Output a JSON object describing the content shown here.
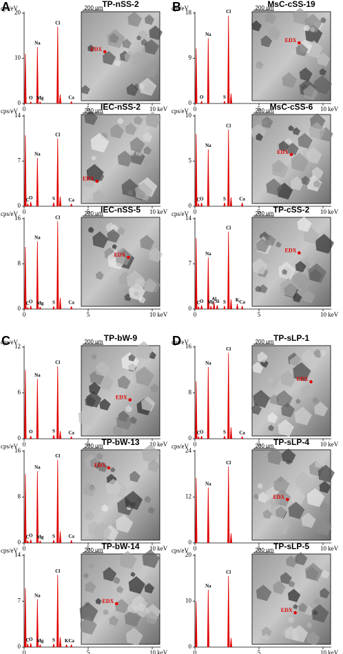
{
  "panel_labels": [
    "A",
    "B",
    "C",
    "D"
  ],
  "chart_data": [
    {
      "type": "spectrum",
      "title": "TP-nSS-2",
      "y_label": "cps/eV",
      "scale_bar": "200 µm",
      "marker_label": "EDX",
      "color": "#e00000",
      "xlim": [
        0,
        10
      ],
      "xticks": [
        0,
        5,
        {
          "value": 10,
          "label": "10 keV"
        }
      ],
      "ylim": [
        0,
        20
      ],
      "yticks": [
        0,
        10,
        20
      ],
      "x": [
        0.1,
        0.52,
        1.04,
        1.25,
        2.62,
        2.82,
        3.69
      ],
      "values": [
        11,
        0.4,
        12.5,
        0.4,
        17,
        2,
        0.5
      ],
      "peak_labels": [
        null,
        "O",
        "Na",
        "Mg",
        "Cl",
        null,
        "Ca"
      ]
    },
    {
      "type": "spectrum",
      "title": "IEC-nSS-2",
      "y_label": "cps/eV",
      "scale_bar": "200 µm",
      "marker_label": "EDX",
      "color": "#e00000",
      "xlim": [
        0,
        10
      ],
      "xticks": [
        0,
        5,
        {
          "value": 10,
          "label": "10 keV"
        }
      ],
      "ylim": [
        0,
        14
      ],
      "yticks": [
        0,
        7,
        14
      ],
      "x": [
        0.1,
        0.28,
        0.52,
        1.04,
        2.31,
        2.62,
        2.82,
        3.69
      ],
      "values": [
        11,
        0.4,
        0.7,
        7.5,
        0.6,
        10.5,
        1.5,
        0.4
      ],
      "peak_labels": [
        null,
        "C",
        "O",
        "Na",
        "S",
        "Cl",
        null,
        "Ca"
      ]
    },
    {
      "type": "spectrum",
      "title": "IEC-nSS-5",
      "y_label": "cps/eV",
      "scale_bar": "200 µm",
      "marker_label": "EDX",
      "color": "#e00000",
      "xlim": [
        0,
        10
      ],
      "xticks": [
        0,
        5,
        {
          "value": 10,
          "label": "10 keV"
        }
      ],
      "ylim": [
        0,
        16
      ],
      "yticks": [
        0,
        8,
        16
      ],
      "x": [
        0.1,
        0.28,
        0.52,
        1.04,
        1.25,
        2.31,
        2.62,
        2.82,
        3.69
      ],
      "values": [
        11,
        0.3,
        0.6,
        12,
        0.4,
        0.5,
        15.5,
        2,
        0.5
      ],
      "peak_labels": [
        null,
        "C",
        "O",
        "Na",
        "Mg",
        "S",
        "Cl",
        null,
        "Ca"
      ]
    },
    {
      "type": "spectrum",
      "title": "MsC-cSS-19",
      "y_label": "cps/eV",
      "scale_bar": "200 µm",
      "marker_label": "EDX",
      "color": "#e00000",
      "xlim": [
        0,
        10
      ],
      "xticks": [
        0,
        5,
        {
          "value": 10,
          "label": "10 keV"
        }
      ],
      "ylim": [
        0,
        18
      ],
      "yticks": [
        0,
        9,
        18
      ],
      "x": [
        0.1,
        0.52,
        1.04,
        2.31,
        2.62,
        2.82
      ],
      "values": [
        11,
        0.5,
        13,
        0.5,
        17.5,
        2
      ],
      "peak_labels": [
        null,
        "O",
        "Na",
        "S",
        "Cl",
        null
      ]
    },
    {
      "type": "spectrum",
      "title": "MsC-cSS-6",
      "y_label": "cps/eV",
      "scale_bar": "200 µm",
      "marker_label": "EDX",
      "color": "#e00000",
      "xlim": [
        0,
        10
      ],
      "xticks": [
        0,
        5,
        {
          "value": 10,
          "label": "10 keV"
        }
      ],
      "ylim": [
        0,
        10
      ],
      "yticks": [
        0,
        5,
        10
      ],
      "x": [
        0.1,
        0.28,
        0.52,
        1.04,
        2.31,
        2.62,
        2.82,
        3.69
      ],
      "values": [
        8,
        0.3,
        0.4,
        6.3,
        0.4,
        8.5,
        1,
        0.4
      ],
      "peak_labels": [
        null,
        "C",
        "O",
        "Na",
        "S",
        "Cl",
        null,
        "Ca"
      ]
    },
    {
      "type": "spectrum",
      "title": "TP-cSS-2",
      "y_label": "cps/eV",
      "scale_bar": "200 µm",
      "marker_label": "EDX",
      "color": "#e00000",
      "xlim": [
        0,
        10
      ],
      "xticks": [
        0,
        5,
        {
          "value": 10,
          "label": "10 keV"
        }
      ],
      "ylim": [
        0,
        14
      ],
      "yticks": [
        0,
        7,
        14
      ],
      "x": [
        0.1,
        0.28,
        0.52,
        1.04,
        1.25,
        1.49,
        1.74,
        2.31,
        2.62,
        2.82,
        3.31,
        3.69
      ],
      "values": [
        11,
        0.4,
        0.6,
        8,
        0.5,
        1,
        0.6,
        0.5,
        12,
        1.5,
        0.8,
        0.5
      ],
      "peak_labels": [
        null,
        "C",
        "O",
        "Na",
        "Mg",
        "Al",
        "Si",
        "S",
        "Cl",
        null,
        "K",
        "Ca"
      ]
    },
    {
      "type": "spectrum",
      "title": "TP-bW-9",
      "y_label": "cps/eV",
      "scale_bar": "200 µm",
      "marker_label": "EDX",
      "color": "#e00000",
      "xlim": [
        0,
        10
      ],
      "xticks": [
        0,
        5,
        {
          "value": 10,
          "label": "10 keV"
        }
      ],
      "ylim": [
        0,
        12
      ],
      "yticks": [
        0,
        6,
        12
      ],
      "x": [
        0.1,
        0.52,
        1.04,
        2.31,
        2.62,
        2.82,
        3.69
      ],
      "values": [
        9,
        0.4,
        7.8,
        0.5,
        9.5,
        1,
        0.3
      ],
      "peak_labels": [
        null,
        "O",
        "Na",
        "S",
        "Cl",
        null,
        "Ca"
      ]
    },
    {
      "type": "spectrum",
      "title": "TP-bW-13",
      "y_label": "cps/eV",
      "scale_bar": "200 µm",
      "marker_label": "EDX",
      "color": "#e00000",
      "xlim": [
        0,
        10
      ],
      "xticks": [
        0,
        5,
        {
          "value": 10,
          "label": "10 keV"
        }
      ],
      "ylim": [
        0,
        16
      ],
      "yticks": [
        0,
        8,
        16
      ],
      "x": [
        0.1,
        0.28,
        0.52,
        1.04,
        1.25,
        2.31,
        2.62,
        2.82,
        3.69
      ],
      "values": [
        12,
        0.4,
        0.6,
        12.5,
        0.4,
        0.5,
        14.5,
        2,
        0.5
      ],
      "peak_labels": [
        null,
        "C",
        "O",
        "Na",
        "Mg",
        "S",
        "Cl",
        null,
        "Ca"
      ]
    },
    {
      "type": "spectrum",
      "title": "TP-bW-14",
      "y_label": "cps/eV",
      "scale_bar": "200 µm",
      "marker_label": "EDX",
      "color": "#e00000",
      "xlim": [
        0,
        10
      ],
      "xticks": [
        0,
        5,
        {
          "value": 10,
          "label": "10 keV"
        }
      ],
      "ylim": [
        0,
        14
      ],
      "yticks": [
        0,
        7,
        14
      ],
      "x": [
        0.1,
        0.28,
        0.52,
        1.04,
        1.25,
        2.31,
        2.62,
        2.82,
        3.31,
        3.69
      ],
      "values": [
        9,
        0.5,
        0.6,
        7.3,
        0.4,
        0.5,
        11,
        1.5,
        0.4,
        0.4
      ],
      "peak_labels": [
        null,
        "C",
        "O",
        "Na",
        "Mg",
        "S",
        "Cl",
        null,
        "K",
        "Ca"
      ]
    },
    {
      "type": "spectrum",
      "title": "TP-sLP-1",
      "y_label": "cps/eV",
      "scale_bar": "200 µm",
      "marker_label": "EDX",
      "color": "#e00000",
      "xlim": [
        0,
        10
      ],
      "xticks": [
        0,
        5,
        {
          "value": 10,
          "label": "10 keV"
        }
      ],
      "ylim": [
        0,
        16
      ],
      "yticks": [
        0,
        8,
        16
      ],
      "x": [
        0.1,
        0.28,
        0.52,
        1.04,
        2.31,
        2.62,
        2.82,
        3.69
      ],
      "values": [
        10,
        0.4,
        0.5,
        12.5,
        0.5,
        15,
        2,
        0.4
      ],
      "peak_labels": [
        null,
        "C",
        "O",
        "Na",
        "S",
        "Cl",
        null,
        "Ca"
      ]
    },
    {
      "type": "spectrum",
      "title": "TP-sLP-4",
      "y_label": "cps/eV",
      "scale_bar": "200 µm",
      "marker_label": "EDX",
      "color": "#e00000",
      "xlim": [
        0,
        10
      ],
      "xticks": [
        0,
        5,
        {
          "value": 10,
          "label": "10 keV"
        }
      ],
      "ylim": [
        0,
        24
      ],
      "yticks": [
        0,
        12,
        24
      ],
      "x": [
        0.1,
        1.04,
        2.62,
        2.82
      ],
      "values": [
        17,
        14.5,
        20,
        2.5
      ],
      "peak_labels": [
        null,
        "Na",
        "Cl",
        null
      ]
    },
    {
      "type": "spectrum",
      "title": "TP-sLP-5",
      "y_label": "cps/eV",
      "scale_bar": "200 µm",
      "marker_label": "EDX",
      "color": "#e00000",
      "xlim": [
        0,
        10
      ],
      "xticks": [
        0,
        5,
        {
          "value": 10,
          "label": "10 keV"
        }
      ],
      "ylim": [
        0,
        20
      ],
      "yticks": [
        0,
        10,
        20
      ],
      "x": [
        0.1,
        1.04,
        2.62,
        2.82
      ],
      "values": [
        10,
        12.5,
        15.5,
        2
      ],
      "peak_labels": [
        null,
        "Na",
        "Cl",
        null
      ]
    }
  ]
}
